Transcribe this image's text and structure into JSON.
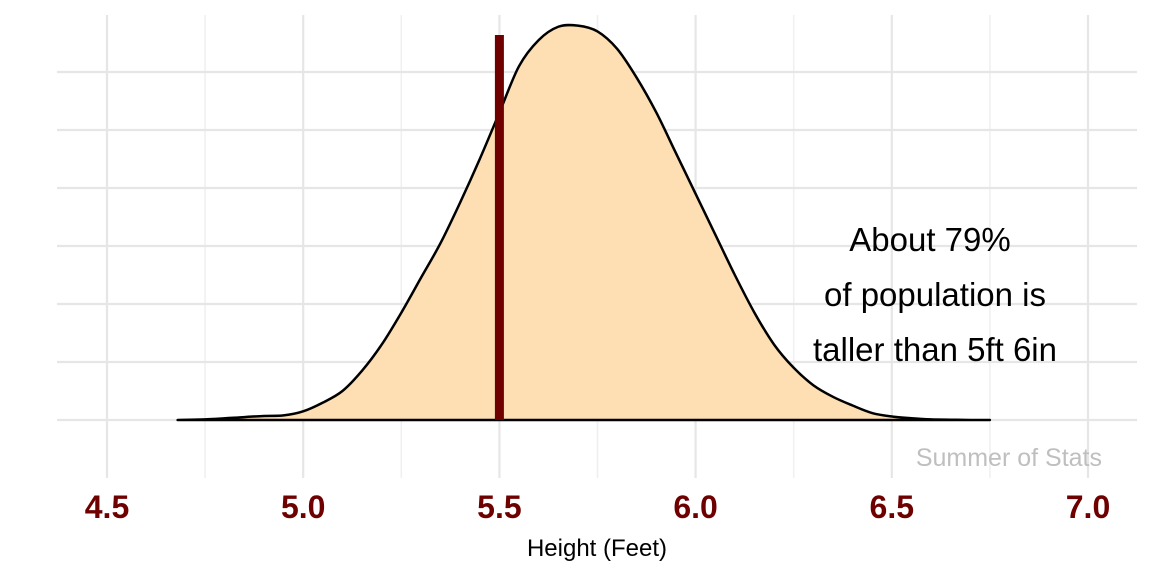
{
  "chart_data": {
    "type": "area",
    "xlabel": "Height (Feet)",
    "xlim": [
      4.5,
      7.0
    ],
    "x_ticks": [
      "4.5",
      "5.0",
      "5.5",
      "6.0",
      "6.5",
      "7.0"
    ],
    "grid": true,
    "ylabel": "",
    "y_ticks_shown": false,
    "density": {
      "x": [
        4.68,
        4.75,
        4.85,
        4.9,
        4.95,
        5.0,
        5.05,
        5.1,
        5.15,
        5.2,
        5.25,
        5.3,
        5.35,
        5.4,
        5.45,
        5.5,
        5.55,
        5.6,
        5.65,
        5.7,
        5.75,
        5.8,
        5.85,
        5.9,
        5.95,
        6.0,
        6.05,
        6.1,
        6.15,
        6.2,
        6.25,
        6.3,
        6.35,
        6.4,
        6.45,
        6.5,
        6.55,
        6.6,
        6.65,
        6.7,
        6.75
      ],
      "y": [
        0.0,
        0.01,
        0.05,
        0.07,
        0.08,
        0.15,
        0.3,
        0.5,
        0.85,
        1.3,
        1.85,
        2.45,
        3.05,
        3.75,
        4.5,
        5.3,
        6.1,
        6.55,
        6.78,
        6.8,
        6.7,
        6.4,
        5.9,
        5.3,
        4.6,
        3.9,
        3.2,
        2.5,
        1.85,
        1.3,
        0.9,
        0.6,
        0.4,
        0.25,
        0.12,
        0.06,
        0.03,
        0.01,
        0.005,
        0.0,
        0.0
      ],
      "ylim": [
        -1,
        7
      ]
    },
    "vline": {
      "x": 5.5
    },
    "annotation": [
      "About 79%",
      "of population is",
      "taller than 5ft 6in"
    ],
    "caption": "Summer of Stats",
    "colors": {
      "fill": "#fddfb3",
      "outline": "#000000",
      "vline": "#6e0000",
      "tick_label": "#6e0000",
      "caption": "#bfbfbf",
      "grid": "#e6e6e6"
    }
  }
}
